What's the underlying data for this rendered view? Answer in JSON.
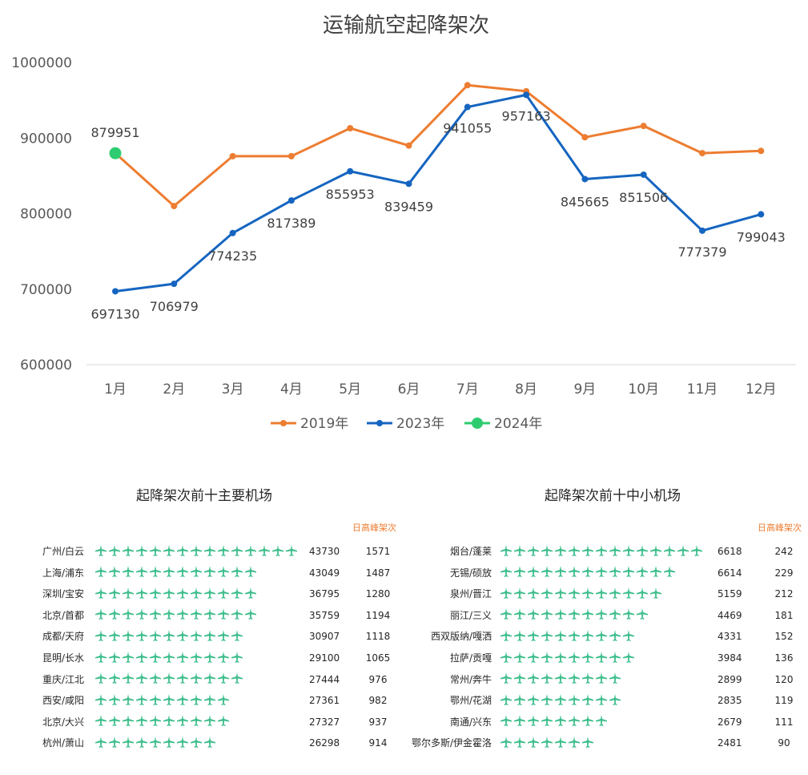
{
  "chart_data": {
    "type": "line",
    "title": "运输航空起降架次",
    "categories": [
      "1月",
      "2月",
      "3月",
      "4月",
      "5月",
      "6月",
      "7月",
      "8月",
      "9月",
      "10月",
      "11月",
      "12月"
    ],
    "y_ticks": [
      "1000000",
      "900000",
      "800000",
      "700000",
      "600000"
    ],
    "ylim": [
      600000,
      1000000
    ],
    "grid": false,
    "legend_position": "bottom",
    "series": [
      {
        "name": "2019年",
        "color": "#ED7D31",
        "values": [
          879951,
          810000,
          876000,
          876000,
          913000,
          890000,
          970000,
          962000,
          901000,
          916000,
          880000,
          883000
        ],
        "labels": false
      },
      {
        "name": "2023年",
        "color": "#1565C0",
        "values": [
          697130,
          706979,
          774235,
          817389,
          855953,
          839459,
          941055,
          957163,
          845665,
          851506,
          777379,
          799043
        ],
        "labels": true
      },
      {
        "name": "2024年",
        "color": "#2ECC71",
        "values": [
          879951,
          null,
          null,
          null,
          null,
          null,
          null,
          null,
          null,
          null,
          null,
          null
        ],
        "labels": true
      }
    ],
    "label_texts_2023": [
      "697130",
      "706979",
      "774235",
      "817389",
      "855953",
      "839459",
      "941055",
      "957163",
      "845665",
      "851506",
      "777379",
      "799043"
    ],
    "label_text_2024": "879951"
  },
  "plane_icon": "airplane-icon",
  "plane_color": "#3DBE8B",
  "major": {
    "title": "起降架次前十主要机场",
    "peak_header": "日高峰架次",
    "rows": [
      {
        "name": "广州/白云",
        "planes": 15,
        "count": "43730",
        "peak": "1571"
      },
      {
        "name": "上海/浦东",
        "planes": 12,
        "count": "43049",
        "peak": "1487"
      },
      {
        "name": "深圳/宝安",
        "planes": 12,
        "count": "36795",
        "peak": "1280"
      },
      {
        "name": "北京/首都",
        "planes": 12,
        "count": "35759",
        "peak": "1194"
      },
      {
        "name": "成都/天府",
        "planes": 11,
        "count": "30907",
        "peak": "1118"
      },
      {
        "name": "昆明/长水",
        "planes": 11,
        "count": "29100",
        "peak": "1065"
      },
      {
        "name": "重庆/江北",
        "planes": 11,
        "count": "27444",
        "peak": "976"
      },
      {
        "name": "西安/咸阳",
        "planes": 10,
        "count": "27361",
        "peak": "982"
      },
      {
        "name": "北京/大兴",
        "planes": 10,
        "count": "27327",
        "peak": "937"
      },
      {
        "name": "杭州/萧山",
        "planes": 9,
        "count": "26298",
        "peak": "914"
      }
    ]
  },
  "minor": {
    "title": "起降架次前十中小机场",
    "peak_header": "日高峰架次",
    "rows": [
      {
        "name": "烟台/蓬莱",
        "planes": 15,
        "count": "6618",
        "peak": "242"
      },
      {
        "name": "无锡/硕放",
        "planes": 13,
        "count": "6614",
        "peak": "229"
      },
      {
        "name": "泉州/晋江",
        "planes": 12,
        "count": "5159",
        "peak": "212"
      },
      {
        "name": "丽江/三义",
        "planes": 11,
        "count": "4469",
        "peak": "181"
      },
      {
        "name": "西双版纳/嘎洒",
        "planes": 10,
        "count": "4331",
        "peak": "152"
      },
      {
        "name": "拉萨/贡嘎",
        "planes": 10,
        "count": "3984",
        "peak": "136"
      },
      {
        "name": "常州/奔牛",
        "planes": 9,
        "count": "2899",
        "peak": "120"
      },
      {
        "name": "鄂州/花湖",
        "planes": 9,
        "count": "2835",
        "peak": "119"
      },
      {
        "name": "南通/兴东",
        "planes": 8,
        "count": "2679",
        "peak": "111"
      },
      {
        "name": "鄂尔多斯/伊金霍洛",
        "planes": 7,
        "count": "2481",
        "peak": "90"
      }
    ]
  }
}
